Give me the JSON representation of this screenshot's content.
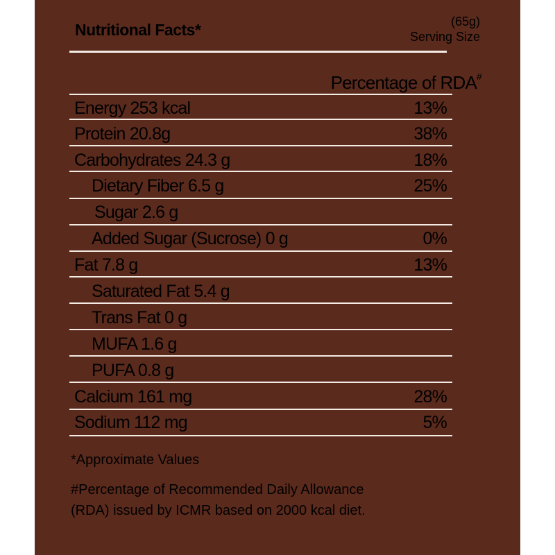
{
  "header": {
    "title": "Nutritional Facts*",
    "serving_amount": "(65g)",
    "serving_label": "Serving Size"
  },
  "rda_header": {
    "text": "Percentage of RDA",
    "mark": "#"
  },
  "rows": [
    {
      "label": "Energy 253 kcal",
      "pct": "13%"
    },
    {
      "label": "Protein 20.8g",
      "pct": "38%"
    },
    {
      "label": "Carbohydrates 24.3 g",
      "pct": "18%"
    },
    {
      "label": "Dietary Fiber 6.5 g",
      "pct": "25%"
    },
    {
      "label": "Sugar 2.6 g",
      "pct": ""
    },
    {
      "label": "Added Sugar (Sucrose) 0 g",
      "pct": "0%"
    },
    {
      "label": "Fat  7.8 g",
      "pct": "13%"
    },
    {
      "label": "Saturated Fat 5.4 g",
      "pct": ""
    },
    {
      "label": "Trans Fat 0 g",
      "pct": ""
    },
    {
      "label": "MUFA 1.6 g",
      "pct": ""
    },
    {
      "label": "PUFA 0.8 g",
      "pct": ""
    },
    {
      "label": "Calcium 161 mg",
      "pct": "28%"
    },
    {
      "label": "Sodium 112 mg",
      "pct": "5%"
    }
  ],
  "footnotes": {
    "approx": "*Approximate Values",
    "rda": "#Percentage of Recommended Daily Allowance (RDA) issued by ICMR based on 2000 kcal diet."
  }
}
